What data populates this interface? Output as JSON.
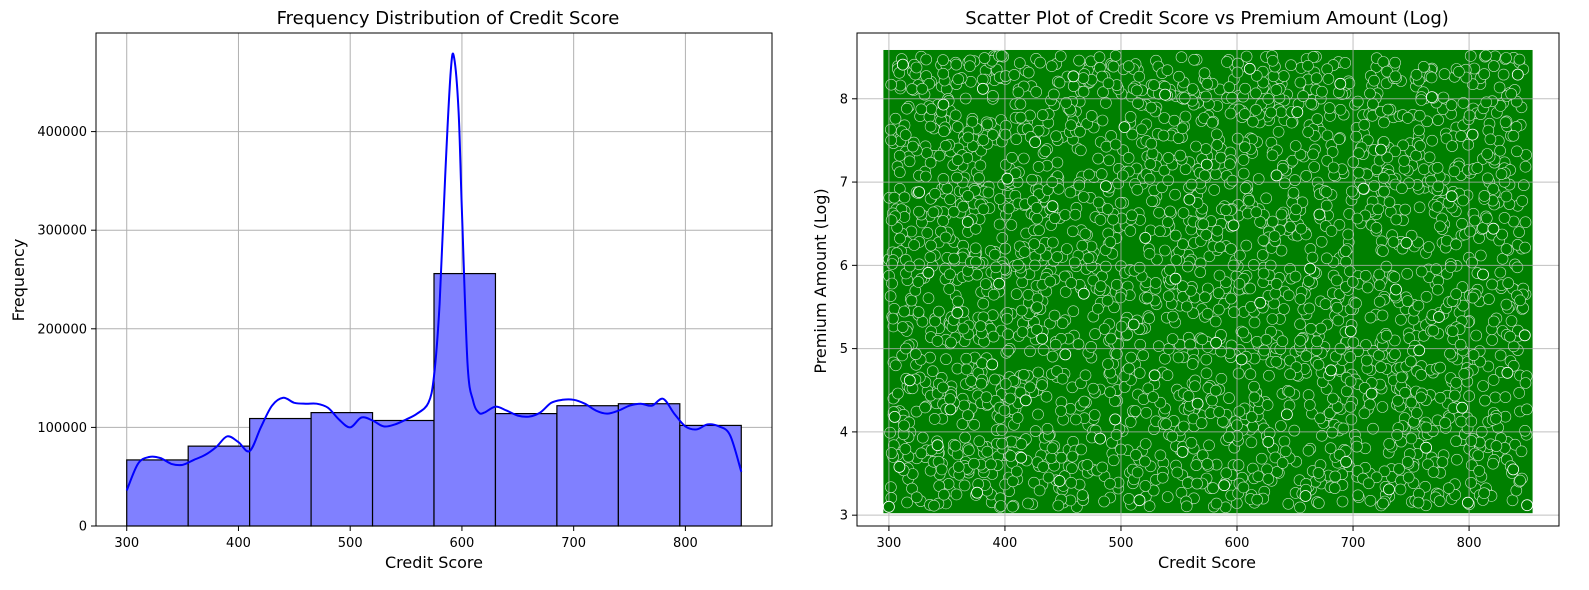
{
  "chart_data": [
    {
      "type": "bar",
      "title": "Frequency Distribution of Credit Score",
      "xlabel": "Credit Score",
      "ylabel": "Frequency",
      "xlim": [
        272.5,
        877.5
      ],
      "ylim": [
        0,
        500000
      ],
      "grid": true,
      "bar_color": "#8080ff",
      "bar_edge_color": "#000000",
      "kde_color": "#0000ff",
      "xticks": [
        300,
        400,
        500,
        600,
        700,
        800
      ],
      "yticks": [
        0,
        100000,
        200000,
        300000,
        400000
      ],
      "bins": [
        {
          "x0": 300,
          "x1": 355,
          "value": 67000
        },
        {
          "x0": 355,
          "x1": 410,
          "value": 81000
        },
        {
          "x0": 410,
          "x1": 465,
          "value": 109000
        },
        {
          "x0": 465,
          "x1": 520,
          "value": 115000
        },
        {
          "x0": 520,
          "x1": 575,
          "value": 107000
        },
        {
          "x0": 575,
          "x1": 630,
          "value": 256000
        },
        {
          "x0": 630,
          "x1": 685,
          "value": 114000
        },
        {
          "x0": 685,
          "x1": 740,
          "value": 122000
        },
        {
          "x0": 740,
          "x1": 795,
          "value": 124000
        },
        {
          "x0": 795,
          "x1": 850,
          "value": 102000
        }
      ],
      "kde": {
        "x": [
          300,
          310,
          320,
          330,
          340,
          350,
          360,
          370,
          380,
          390,
          400,
          410,
          420,
          430,
          440,
          450,
          460,
          470,
          480,
          490,
          500,
          510,
          520,
          530,
          540,
          550,
          560,
          570,
          575,
          580,
          585,
          590,
          593,
          597,
          600,
          605,
          610,
          615,
          620,
          630,
          640,
          650,
          660,
          670,
          680,
          690,
          700,
          710,
          720,
          730,
          740,
          750,
          760,
          770,
          780,
          790,
          800,
          810,
          820,
          830,
          840,
          850
        ],
        "y": [
          36000,
          63000,
          70000,
          69000,
          63000,
          62000,
          67000,
          72000,
          80000,
          91000,
          85000,
          76000,
          100000,
          122000,
          130000,
          125000,
          124000,
          124000,
          120000,
          108000,
          100000,
          110000,
          107000,
          101000,
          103000,
          108000,
          114000,
          125000,
          152000,
          225000,
          355000,
          462000,
          475000,
          420000,
          320000,
          165000,
          127000,
          115000,
          115000,
          121000,
          117000,
          112000,
          111000,
          115000,
          125000,
          128000,
          128000,
          124000,
          117000,
          114000,
          117000,
          122000,
          124000,
          122000,
          129000,
          114000,
          101000,
          98000,
          103000,
          101000,
          92000,
          55000
        ]
      }
    },
    {
      "type": "scatter",
      "title": "Scatter Plot of Credit Score vs Premium Amount (Log)",
      "xlabel": "Credit Score",
      "ylabel": "Premium Amount (Log)",
      "xlim": [
        272.5,
        877.5
      ],
      "ylim": [
        2.87,
        8.79
      ],
      "grid": true,
      "point_color": "#008000",
      "point_edge_color": "#ffffff",
      "xticks": [
        300,
        400,
        500,
        600,
        700,
        800
      ],
      "yticks": [
        3,
        4,
        5,
        6,
        7,
        8
      ],
      "point_region": {
        "x": [
          300,
          850
        ],
        "y": [
          3.09,
          8.52
        ]
      },
      "points": [
        [
          312,
          8.41
        ],
        [
          347,
          7.93
        ],
        [
          381,
          8.12
        ],
        [
          426,
          7.48
        ],
        [
          459,
          8.27
        ],
        [
          503,
          7.66
        ],
        [
          538,
          8.05
        ],
        [
          574,
          7.21
        ],
        [
          611,
          8.36
        ],
        [
          652,
          7.84
        ],
        [
          689,
          8.18
        ],
        [
          724,
          7.39
        ],
        [
          768,
          8.02
        ],
        [
          803,
          7.57
        ],
        [
          842,
          8.29
        ],
        [
          326,
          6.88
        ],
        [
          368,
          6.52
        ],
        [
          402,
          7.04
        ],
        [
          441,
          6.71
        ],
        [
          487,
          6.95
        ],
        [
          521,
          6.33
        ],
        [
          559,
          6.79
        ],
        [
          597,
          6.48
        ],
        [
          634,
          7.08
        ],
        [
          671,
          6.61
        ],
        [
          709,
          6.92
        ],
        [
          746,
          6.27
        ],
        [
          785,
          6.83
        ],
        [
          821,
          6.44
        ],
        [
          305,
          4.18
        ],
        [
          334,
          5.91
        ],
        [
          359,
          5.43
        ],
        [
          395,
          5.78
        ],
        [
          432,
          5.12
        ],
        [
          468,
          5.66
        ],
        [
          511,
          5.29
        ],
        [
          547,
          5.84
        ],
        [
          582,
          5.07
        ],
        [
          620,
          5.55
        ],
        [
          663,
          5.96
        ],
        [
          698,
          5.21
        ],
        [
          737,
          5.71
        ],
        [
          774,
          5.38
        ],
        [
          812,
          5.89
        ],
        [
          848,
          5.16
        ],
        [
          318,
          4.62
        ],
        [
          353,
          4.27
        ],
        [
          389,
          4.81
        ],
        [
          418,
          4.38
        ],
        [
          452,
          4.93
        ],
        [
          495,
          4.15
        ],
        [
          529,
          4.68
        ],
        [
          566,
          4.34
        ],
        [
          604,
          4.87
        ],
        [
          643,
          4.21
        ],
        [
          681,
          4.74
        ],
        [
          716,
          4.46
        ],
        [
          757,
          4.98
        ],
        [
          794,
          4.29
        ],
        [
          833,
          4.71
        ],
        [
          309,
          3.58
        ],
        [
          342,
          3.84
        ],
        [
          376,
          3.27
        ],
        [
          414,
          3.69
        ],
        [
          447,
          3.41
        ],
        [
          482,
          3.92
        ],
        [
          516,
          3.18
        ],
        [
          553,
          3.76
        ],
        [
          589,
          3.36
        ],
        [
          627,
          3.88
        ],
        [
          659,
          3.23
        ],
        [
          694,
          3.64
        ],
        [
          731,
          3.31
        ],
        [
          763,
          3.81
        ],
        [
          799,
          3.15
        ],
        [
          838,
          3.55
        ],
        [
          850,
          3.12
        ],
        [
          300,
          3.1
        ]
      ]
    }
  ]
}
